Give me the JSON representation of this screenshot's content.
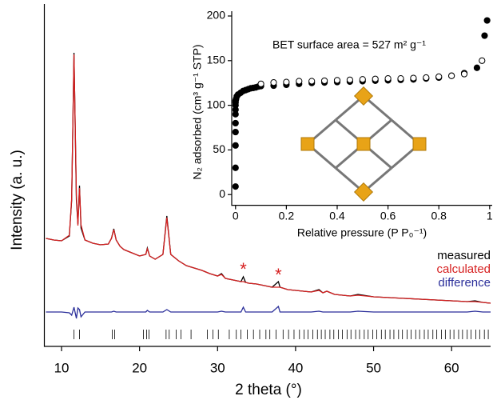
{
  "chart_data": [
    {
      "type": "line",
      "xlabel": "2 theta (°)",
      "ylabel": "Intensity (a. u.)",
      "xlim": [
        8,
        65
      ],
      "xticks": [
        10,
        20,
        30,
        40,
        50,
        60
      ],
      "ylim": [
        -43,
        385
      ],
      "legend": "right",
      "x": [
        8,
        9,
        10,
        11,
        11.3,
        11.6,
        11.9,
        12.1,
        12.3,
        12.5,
        13,
        14,
        15,
        16,
        16.4,
        16.7,
        17,
        17.5,
        18,
        19,
        20,
        20.8,
        21,
        21.3,
        22,
        23,
        23.5,
        24,
        24.5,
        25,
        26,
        27,
        28,
        29,
        30,
        30.5,
        31,
        32,
        33,
        33.3,
        33.6,
        34,
        35,
        36,
        37,
        37.8,
        38,
        39,
        40,
        41,
        42,
        43,
        43.5,
        44,
        45,
        46,
        47,
        48,
        50,
        52,
        54,
        56,
        58,
        60,
        62,
        63,
        64,
        65
      ],
      "series": [
        {
          "name": "measured",
          "color": "#000000",
          "values": [
            92,
            90,
            89,
            95,
            140,
            324,
            140,
            110,
            158,
            105,
            90,
            86,
            84,
            85,
            92,
            104,
            90,
            82,
            78,
            74,
            70,
            72,
            80,
            70,
            66,
            72,
            120,
            72,
            68,
            64,
            58,
            55,
            52,
            48,
            45,
            48,
            42,
            40,
            38,
            44,
            37,
            36,
            35,
            33,
            31,
            38,
            31,
            28,
            27,
            26,
            25,
            28,
            24,
            26,
            22,
            21,
            20,
            22,
            19,
            18,
            17,
            16,
            15,
            14,
            13,
            14,
            12,
            11
          ]
        },
        {
          "name": "calculated",
          "color": "#d62020",
          "values": [
            92,
            90,
            89,
            96,
            142,
            322,
            146,
            108,
            155,
            109,
            90,
            86,
            84,
            85,
            92,
            103,
            90,
            82,
            78,
            74,
            70,
            72,
            79,
            70,
            66,
            72,
            118,
            72,
            68,
            64,
            58,
            55,
            52,
            48,
            45,
            47,
            42,
            40,
            38,
            38,
            37,
            36,
            35,
            33,
            31,
            31,
            31,
            28,
            27,
            26,
            25,
            27,
            24,
            26,
            22,
            21,
            20,
            21,
            19,
            18,
            17,
            16,
            15,
            14,
            13,
            13,
            12,
            11
          ]
        },
        {
          "name": "difference",
          "color": "#2b2f9a",
          "values": [
            0,
            0,
            0,
            -1,
            -4,
            6,
            -8,
            5,
            3,
            -6,
            0,
            0,
            0,
            0,
            0,
            1,
            0,
            0,
            0,
            0,
            0,
            0,
            2,
            0,
            0,
            0,
            3,
            0,
            0,
            0,
            0,
            0,
            0,
            0,
            0,
            1,
            0,
            0,
            0,
            6,
            0,
            0,
            0,
            0,
            0,
            7,
            0,
            0,
            0,
            0,
            0,
            1,
            0,
            0,
            0,
            0,
            0,
            1,
            0,
            0,
            0,
            0,
            0,
            0,
            0,
            1,
            0,
            0
          ]
        }
      ],
      "reflections": [
        11.6,
        12.3,
        16.5,
        16.8,
        20.5,
        20.9,
        21.2,
        23.4,
        23.8,
        24.7,
        25.3,
        26.6,
        28.7,
        29.4,
        30.1,
        31.5,
        32.4,
        33.0,
        33.8,
        34.6,
        35.4,
        36.2,
        36.7,
        37.5,
        38.4,
        39.1,
        39.8,
        40.5,
        41.1,
        41.6,
        42.2,
        42.8,
        43.3,
        43.8,
        44.4,
        44.9,
        45.5,
        46.0,
        46.6,
        47.1,
        47.7,
        48.2,
        48.8,
        49.3,
        49.9,
        50.4,
        51.0,
        51.5,
        52.1,
        52.6,
        53.2,
        53.7,
        54.3,
        54.8,
        55.4,
        55.9,
        56.5,
        57.0,
        57.6,
        58.1,
        58.7,
        59.2,
        59.8,
        60.3,
        60.9,
        61.4,
        62.0,
        62.5,
        63.1,
        63.6,
        64.2,
        64.7
      ],
      "annotations": [
        {
          "text": "*",
          "x": 33.3,
          "y": 52,
          "color": "#d62020"
        },
        {
          "text": "*",
          "x": 37.8,
          "y": 45,
          "color": "#d62020"
        }
      ]
    },
    {
      "type": "scatter",
      "xlabel": "Relative pressure (P P₀⁻¹)",
      "ylabel": "N₂ adsorbed (cm³ g⁻¹ STP)",
      "xlim": [
        -0.015,
        1.01
      ],
      "xticks": [
        0,
        0.2,
        0.4,
        0.6,
        0.8,
        1
      ],
      "ylim": [
        -12,
        200
      ],
      "yticks": [
        0,
        50,
        100,
        150,
        200
      ],
      "annotation": "BET surface area = 527 m² g⁻¹",
      "series": [
        {
          "marker": "filled",
          "color": "#000000",
          "x": [
            0,
            0,
            0,
            0,
            0,
            0,
            0,
            0,
            0,
            0,
            0.002,
            0.005,
            0.01,
            0.02,
            0.03,
            0.04,
            0.05,
            0.06,
            0.07,
            0.08,
            0.09,
            0.1,
            0.15,
            0.2,
            0.25,
            0.3,
            0.35,
            0.4,
            0.45,
            0.5,
            0.55,
            0.6,
            0.65,
            0.7,
            0.75,
            0.8,
            0.85,
            0.9,
            0.95,
            0.98,
            0.99
          ],
          "values": [
            9,
            30,
            55,
            70,
            80,
            90,
            95,
            100,
            103,
            105,
            107,
            110,
            112,
            114,
            116,
            117,
            118,
            119,
            119.5,
            120,
            121,
            121.5,
            122,
            123,
            124,
            125,
            125.5,
            126,
            126.5,
            127,
            127.5,
            128,
            128.5,
            129,
            130,
            131,
            133,
            136,
            142,
            178,
            195
          ]
        },
        {
          "marker": "open",
          "color": "#000000",
          "x": [
            0.97,
            0.9,
            0.85,
            0.8,
            0.75,
            0.7,
            0.65,
            0.6,
            0.55,
            0.5,
            0.45,
            0.4,
            0.35,
            0.3,
            0.25,
            0.2,
            0.15,
            0.1
          ],
          "values": [
            150,
            135,
            133,
            132,
            131,
            130.5,
            130,
            130,
            129.5,
            129,
            128.5,
            128,
            127.5,
            127,
            127,
            126,
            125.5,
            124
          ]
        }
      ]
    }
  ]
}
